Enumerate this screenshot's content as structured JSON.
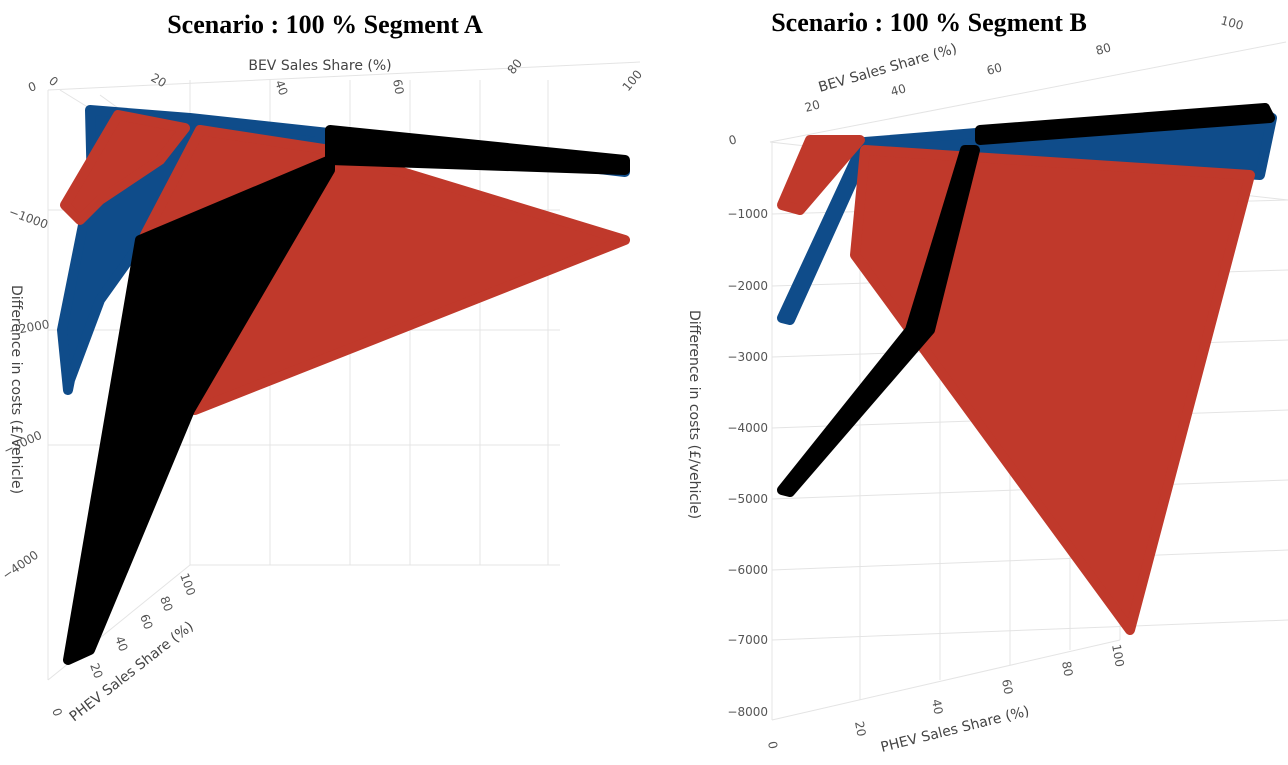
{
  "colors": {
    "red": "#c0392b",
    "blue": "#0f4c8a",
    "black": "#000000"
  },
  "chart_data": [
    {
      "type": "scatter",
      "title": "Scenario : 100 % Segment A",
      "xlabel": "BEV Sales Share (%)",
      "ylabel": "PHEV Sales Share (%)",
      "zlabel": "Difference in costs (£/vehicle)",
      "xticks": [
        "0",
        "20",
        "40",
        "60",
        "80",
        "100"
      ],
      "yticks": [
        "0",
        "20",
        "40",
        "60",
        "80",
        "100"
      ],
      "zticks": [
        "0",
        "−1000",
        "−2000",
        "−3000",
        "−4000"
      ],
      "xlim": [
        0,
        100
      ],
      "ylim": [
        0,
        100
      ],
      "zlim": [
        -4600,
        0
      ],
      "series": [
        {
          "color": "#c0392b",
          "corners": [
            {
              "x": 0,
              "y": 0,
              "z": -800
            },
            {
              "x": 100,
              "y": 0,
              "z": -300
            },
            {
              "x": 0,
              "y": 100,
              "z": -1200
            },
            {
              "x": 100,
              "y": 100,
              "z": -1150
            }
          ]
        },
        {
          "color": "#0f4c8a",
          "corners": [
            {
              "x": 0,
              "y": 0,
              "z": -2300
            },
            {
              "x": 100,
              "y": 0,
              "z": -300
            },
            {
              "x": 10,
              "y": 0,
              "z": -100
            }
          ]
        },
        {
          "color": "#000000",
          "corners": [
            {
              "x": 0,
              "y": 0,
              "z": -4600
            },
            {
              "x": 100,
              "y": 0,
              "z": -300
            },
            {
              "x": 30,
              "y": 0,
              "z": -1200
            }
          ]
        }
      ]
    },
    {
      "type": "scatter",
      "title": "Scenario : 100 % Segment B",
      "xlabel": "BEV Sales Share (%)",
      "ylabel": "PHEV Sales Share (%)",
      "zlabel": "Difference in costs (£/vehicle)",
      "xticks": [
        "0",
        "20",
        "40",
        "60",
        "80",
        "100"
      ],
      "yticks": [
        "0",
        "20",
        "40",
        "60",
        "80",
        "100"
      ],
      "zticks": [
        "0",
        "−1000",
        "−2000",
        "−3000",
        "−4000",
        "−5000",
        "−6000",
        "−7000",
        "−8000"
      ],
      "xlim": [
        0,
        100
      ],
      "ylim": [
        0,
        100
      ],
      "zlim": [
        -8000,
        0
      ],
      "series": [
        {
          "color": "#c0392b",
          "corners": [
            {
              "x": 0,
              "y": 0,
              "z": -900
            },
            {
              "x": 0,
              "y": 100,
              "z": -6900
            },
            {
              "x": 100,
              "y": 100,
              "z": -700
            }
          ]
        },
        {
          "color": "#0f4c8a",
          "corners": [
            {
              "x": 0,
              "y": 0,
              "z": -2400
            },
            {
              "x": 100,
              "y": 0,
              "z": -300
            }
          ]
        },
        {
          "color": "#000000",
          "corners": [
            {
              "x": 0,
              "y": 0,
              "z": -4800
            },
            {
              "x": 100,
              "y": 0,
              "z": -300
            }
          ]
        }
      ]
    }
  ]
}
